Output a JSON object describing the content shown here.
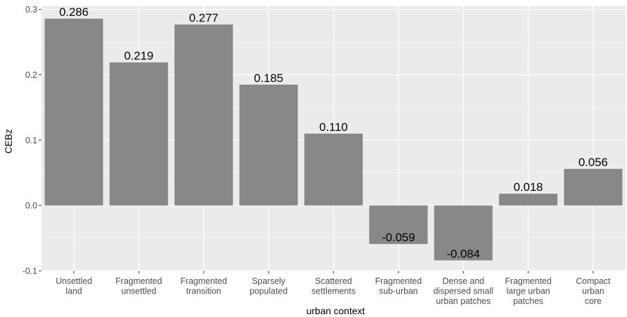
{
  "chart_data": {
    "type": "bar",
    "title": "",
    "xlabel": "urban context",
    "ylabel": "CEBz",
    "categories": [
      [
        "Unsettled",
        "land"
      ],
      [
        "Fragmented",
        "unsettled"
      ],
      [
        "Fragmented",
        "transition"
      ],
      [
        "Sparsely",
        "populated"
      ],
      [
        "Scattered",
        "settlements"
      ],
      [
        "Fragmented",
        "sub-urban"
      ],
      [
        "Dense and",
        "dispersed small",
        "urban patches"
      ],
      [
        "Fragmented",
        "large urban",
        "patches"
      ],
      [
        "Compact",
        "urban",
        "core"
      ]
    ],
    "values": [
      0.286,
      0.219,
      0.277,
      0.185,
      0.11,
      -0.059,
      -0.084,
      0.018,
      0.056
    ],
    "value_labels": [
      "0.286",
      "0.219",
      "0.277",
      "0.185",
      "0.110",
      "-0.059",
      "-0.084",
      "0.018",
      "0.056"
    ],
    "yticks": [
      -0.1,
      0.0,
      0.1,
      0.2,
      0.3
    ],
    "ytick_labels": [
      "-0.1",
      "0.0",
      "0.1",
      "0.2",
      "0.3"
    ],
    "ylim": [
      -0.1,
      0.305
    ],
    "grid": true,
    "legend": false,
    "colors": {
      "bar": "#888888",
      "panel": "#ebebeb",
      "grid_major": "#ffffff"
    }
  }
}
